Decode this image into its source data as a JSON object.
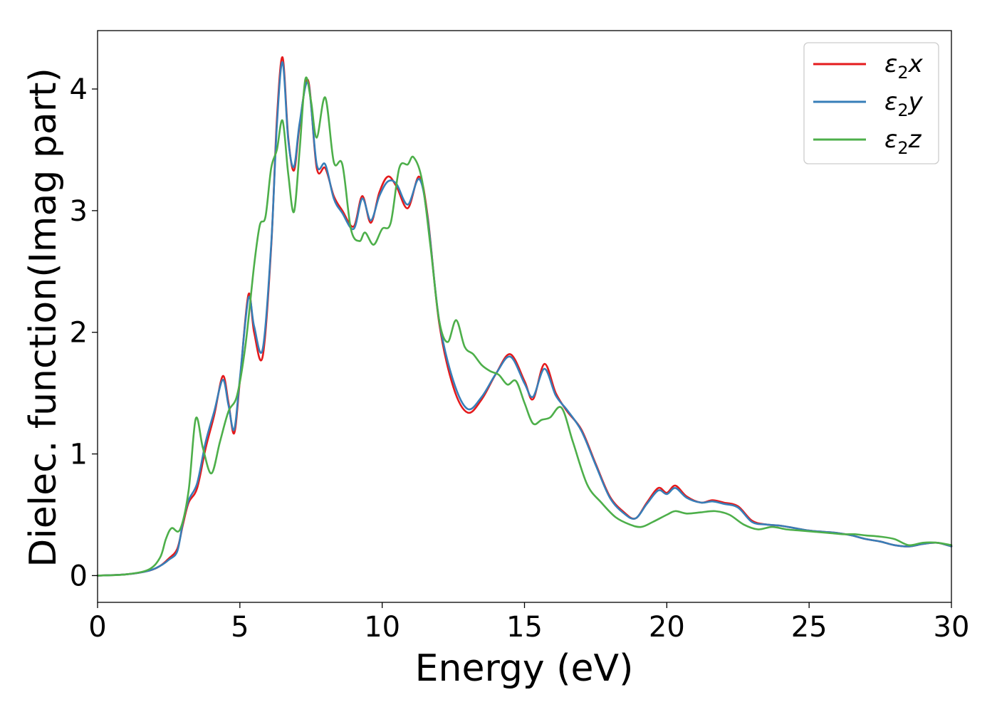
{
  "chart_data": {
    "type": "line",
    "xlabel": "Energy (eV)",
    "ylabel": "Dielec. function(Imag part)",
    "xlim": [
      0,
      30
    ],
    "ylim": [
      -0.22,
      4.48
    ],
    "xticks": [
      0,
      5,
      10,
      15,
      20,
      25,
      30
    ],
    "yticks": [
      0,
      1,
      2,
      3,
      4
    ],
    "grid": false,
    "legend_position": "top-right",
    "series": [
      {
        "name": "ε₂x",
        "legend_main": "ε",
        "legend_sub": "2",
        "legend_suffix": "x",
        "color": "#e41a1c",
        "x": [
          0,
          1,
          1.8,
          2.2,
          2.5,
          2.8,
          3.0,
          3.2,
          3.5,
          3.8,
          4.1,
          4.4,
          4.6,
          4.8,
          5.0,
          5.3,
          5.5,
          5.8,
          6.1,
          6.3,
          6.5,
          6.7,
          6.9,
          7.1,
          7.4,
          7.7,
          8.0,
          8.3,
          8.6,
          9.0,
          9.3,
          9.6,
          9.9,
          10.2,
          10.5,
          10.9,
          11.3,
          11.6,
          12.0,
          12.5,
          13.0,
          13.5,
          14.0,
          14.5,
          15.0,
          15.3,
          15.7,
          16.1,
          16.5,
          17.0,
          17.5,
          18.0,
          18.5,
          18.9,
          19.3,
          19.7,
          20.0,
          20.3,
          20.7,
          21.2,
          21.6,
          22.0,
          22.5,
          23.0,
          23.5,
          24.0,
          24.5,
          25.0,
          25.5,
          26.0,
          26.5,
          27.0,
          27.5,
          28.0,
          28.5,
          29.0,
          29.5,
          30.0
        ],
        "y": [
          0.0,
          0.01,
          0.04,
          0.08,
          0.14,
          0.22,
          0.42,
          0.6,
          0.72,
          1.05,
          1.32,
          1.64,
          1.42,
          1.17,
          1.6,
          2.31,
          2.0,
          1.8,
          2.7,
          3.75,
          4.26,
          3.6,
          3.33,
          3.7,
          4.07,
          3.35,
          3.35,
          3.12,
          3.0,
          2.87,
          3.12,
          2.9,
          3.15,
          3.28,
          3.2,
          3.02,
          3.28,
          2.95,
          2.08,
          1.55,
          1.34,
          1.45,
          1.66,
          1.82,
          1.6,
          1.45,
          1.74,
          1.5,
          1.35,
          1.2,
          0.92,
          0.65,
          0.52,
          0.47,
          0.6,
          0.72,
          0.68,
          0.74,
          0.65,
          0.6,
          0.62,
          0.6,
          0.57,
          0.45,
          0.42,
          0.41,
          0.39,
          0.37,
          0.36,
          0.35,
          0.33,
          0.3,
          0.28,
          0.25,
          0.24,
          0.26,
          0.27,
          0.24
        ]
      },
      {
        "name": "ε₂y",
        "legend_main": "ε",
        "legend_sub": "2",
        "legend_suffix": "y",
        "color": "#377eb8",
        "x": [
          0,
          1,
          1.8,
          2.2,
          2.5,
          2.8,
          3.0,
          3.2,
          3.5,
          3.8,
          4.1,
          4.4,
          4.6,
          4.8,
          5.0,
          5.3,
          5.5,
          5.8,
          6.1,
          6.3,
          6.5,
          6.7,
          6.9,
          7.1,
          7.4,
          7.7,
          8.0,
          8.3,
          8.6,
          9.0,
          9.3,
          9.6,
          9.9,
          10.2,
          10.5,
          10.9,
          11.3,
          11.6,
          12.0,
          12.5,
          13.0,
          13.5,
          14.0,
          14.5,
          15.0,
          15.3,
          15.7,
          16.1,
          16.5,
          17.0,
          17.5,
          18.0,
          18.5,
          18.9,
          19.3,
          19.7,
          20.0,
          20.3,
          20.7,
          21.2,
          21.6,
          22.0,
          22.5,
          23.0,
          23.5,
          24.0,
          24.5,
          25.0,
          25.5,
          26.0,
          26.5,
          27.0,
          27.5,
          28.0,
          28.5,
          29.0,
          29.5,
          30.0
        ],
        "y": [
          0.0,
          0.01,
          0.04,
          0.08,
          0.13,
          0.2,
          0.44,
          0.62,
          0.76,
          1.1,
          1.35,
          1.61,
          1.4,
          1.2,
          1.62,
          2.28,
          2.05,
          1.86,
          2.72,
          3.7,
          4.22,
          3.58,
          3.36,
          3.72,
          4.05,
          3.38,
          3.38,
          3.1,
          2.98,
          2.85,
          3.1,
          2.92,
          3.12,
          3.24,
          3.22,
          3.05,
          3.26,
          2.93,
          2.1,
          1.6,
          1.37,
          1.47,
          1.66,
          1.8,
          1.58,
          1.47,
          1.7,
          1.48,
          1.36,
          1.19,
          0.91,
          0.64,
          0.51,
          0.47,
          0.59,
          0.7,
          0.67,
          0.72,
          0.64,
          0.6,
          0.61,
          0.59,
          0.56,
          0.44,
          0.42,
          0.41,
          0.39,
          0.37,
          0.36,
          0.35,
          0.33,
          0.3,
          0.28,
          0.25,
          0.24,
          0.26,
          0.27,
          0.24
        ]
      },
      {
        "name": "ε₂z",
        "legend_main": "ε",
        "legend_sub": "2",
        "legend_suffix": "z",
        "color": "#4daf4a",
        "x": [
          0,
          1,
          1.8,
          2.2,
          2.4,
          2.6,
          2.9,
          3.2,
          3.45,
          3.7,
          4.0,
          4.3,
          4.6,
          4.9,
          5.2,
          5.5,
          5.7,
          5.9,
          6.1,
          6.3,
          6.5,
          6.7,
          6.9,
          7.1,
          7.3,
          7.5,
          7.7,
          8.0,
          8.3,
          8.6,
          8.9,
          9.2,
          9.4,
          9.7,
          10.0,
          10.3,
          10.6,
          10.9,
          11.1,
          11.4,
          11.7,
          12.0,
          12.3,
          12.6,
          12.9,
          13.2,
          13.5,
          13.8,
          14.1,
          14.4,
          14.7,
          15.0,
          15.3,
          15.6,
          15.9,
          16.3,
          16.7,
          17.2,
          17.7,
          18.2,
          18.7,
          19.1,
          19.5,
          20.0,
          20.3,
          20.7,
          21.2,
          21.7,
          22.2,
          22.7,
          23.2,
          23.7,
          24.2,
          24.7,
          25.2,
          25.7,
          26.2,
          26.6,
          27.0,
          27.5,
          28.0,
          28.5,
          29.0,
          29.5,
          30.0
        ],
        "y": [
          0.0,
          0.01,
          0.05,
          0.15,
          0.3,
          0.39,
          0.38,
          0.7,
          1.29,
          1.05,
          0.84,
          1.1,
          1.35,
          1.48,
          1.9,
          2.55,
          2.88,
          2.95,
          3.35,
          3.5,
          3.74,
          3.3,
          2.99,
          3.5,
          4.08,
          3.9,
          3.6,
          3.93,
          3.4,
          3.38,
          2.85,
          2.75,
          2.82,
          2.72,
          2.85,
          2.9,
          3.35,
          3.38,
          3.44,
          3.25,
          2.7,
          2.1,
          1.92,
          2.1,
          1.88,
          1.82,
          1.73,
          1.68,
          1.65,
          1.57,
          1.6,
          1.42,
          1.25,
          1.28,
          1.3,
          1.38,
          1.1,
          0.75,
          0.6,
          0.48,
          0.42,
          0.4,
          0.44,
          0.5,
          0.53,
          0.51,
          0.52,
          0.53,
          0.5,
          0.42,
          0.38,
          0.4,
          0.38,
          0.37,
          0.36,
          0.35,
          0.34,
          0.34,
          0.33,
          0.32,
          0.3,
          0.25,
          0.27,
          0.27,
          0.25
        ]
      }
    ]
  }
}
